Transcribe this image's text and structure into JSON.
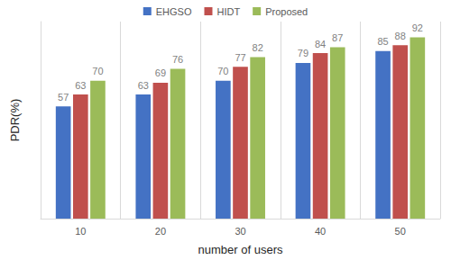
{
  "chart_data": {
    "type": "bar",
    "xlabel": "number of users",
    "ylabel": "PDR(%)",
    "categories": [
      "10",
      "20",
      "30",
      "40",
      "50"
    ],
    "series": [
      {
        "name": "EHGSO",
        "color": "#4472c4",
        "values": [
          57,
          63,
          70,
          79,
          85
        ]
      },
      {
        "name": "HIDT",
        "color": "#c0504d",
        "values": [
          63,
          69,
          77,
          84,
          88
        ]
      },
      {
        "name": "Proposed",
        "color": "#9bbb59",
        "values": [
          70,
          76,
          82,
          87,
          92
        ]
      }
    ],
    "ylim": [
      0,
      100
    ],
    "grid": false,
    "legend": "top",
    "data_labels": true,
    "tick_labels": "x"
  }
}
